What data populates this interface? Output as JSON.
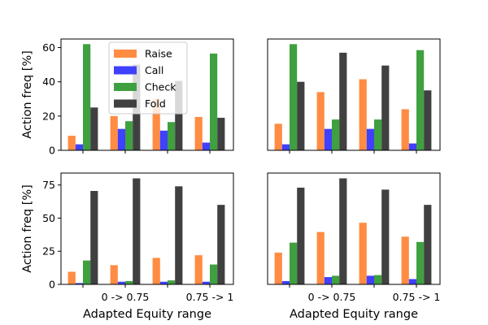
{
  "colors": {
    "Raise": "#ff8c42",
    "Call": "#4040ff",
    "Check": "#3fa03f",
    "Fold": "#404040"
  },
  "chart_data": [
    {
      "type": "bar",
      "panel": "top-left",
      "categories": [
        "",
        "0 -> 0.75",
        "",
        "0.75 -> 1"
      ],
      "series": [
        {
          "name": "Raise",
          "values": [
            8.5,
            20,
            30,
            19.5
          ]
        },
        {
          "name": "Call",
          "values": [
            3.5,
            12.5,
            11.5,
            4.5
          ]
        },
        {
          "name": "Check",
          "values": [
            62,
            17,
            16.5,
            56.5
          ]
        },
        {
          "name": "Fold",
          "values": [
            25,
            50,
            40.5,
            19
          ]
        }
      ],
      "ylabel": "Action freq [%]",
      "xlabel": "",
      "ylim": [
        0,
        65
      ],
      "yticks": [
        0,
        20,
        40,
        60
      ],
      "show_yticks": true,
      "show_xticklabels": false,
      "legend": "top-center"
    },
    {
      "type": "bar",
      "panel": "top-right",
      "categories": [
        "",
        "0 -> 0.75",
        "",
        "0.75 -> 1"
      ],
      "series": [
        {
          "name": "Raise",
          "values": [
            15.5,
            34,
            41.5,
            24
          ]
        },
        {
          "name": "Call",
          "values": [
            3.5,
            12.5,
            12.5,
            4
          ]
        },
        {
          "name": "Check",
          "values": [
            62,
            18,
            18,
            58.5
          ]
        },
        {
          "name": "Fold",
          "values": [
            40,
            57,
            49.5,
            35
          ]
        }
      ],
      "ylabel": "",
      "xlabel": "",
      "ylim": [
        0,
        65
      ],
      "yticks": [],
      "show_yticks": false,
      "show_xticklabels": false
    },
    {
      "type": "bar",
      "panel": "bottom-left",
      "categories": [
        "",
        "0 -> 0.75",
        "",
        "0.75 -> 1"
      ],
      "series": [
        {
          "name": "Raise",
          "values": [
            9.5,
            14.5,
            20,
            22
          ]
        },
        {
          "name": "Call",
          "values": [
            1,
            2,
            2,
            2
          ]
        },
        {
          "name": "Check",
          "values": [
            18,
            2.5,
            3,
            15
          ]
        },
        {
          "name": "Fold",
          "values": [
            70.5,
            80,
            74,
            60
          ]
        }
      ],
      "ylabel": "Action freq [%]",
      "xlabel": "Adapted Equity range",
      "ylim": [
        0,
        84
      ],
      "yticks": [
        0,
        25,
        50,
        75
      ],
      "show_yticks": true,
      "show_xticklabels": true
    },
    {
      "type": "bar",
      "panel": "bottom-right",
      "categories": [
        "",
        "0 -> 0.75",
        "",
        "0.75 -> 1"
      ],
      "series": [
        {
          "name": "Raise",
          "values": [
            24,
            39.5,
            46.5,
            36
          ]
        },
        {
          "name": "Call",
          "values": [
            2.5,
            5.5,
            6.5,
            4
          ]
        },
        {
          "name": "Check",
          "values": [
            31.5,
            6.5,
            7,
            32
          ]
        },
        {
          "name": "Fold",
          "values": [
            73,
            80,
            71.5,
            60
          ]
        }
      ],
      "ylabel": "",
      "xlabel": "Adapted Equity range",
      "ylim": [
        0,
        84
      ],
      "yticks": [],
      "show_yticks": false,
      "show_xticklabels": true
    }
  ]
}
